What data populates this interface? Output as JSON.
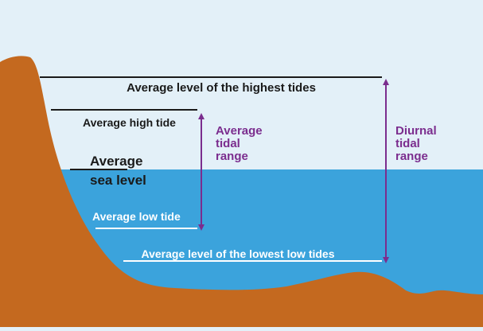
{
  "colors": {
    "sky": "#e3f0f8",
    "sea": "#3ba3dc",
    "land": "#c4691f",
    "dark_line": "#1a1a1a",
    "light_line": "#ffffff",
    "arrow": "#7b2d8e"
  },
  "labels": {
    "highest_tides": "Average level of the highest tides",
    "high_tide": "Average high tide",
    "sea_level_line1": "Average",
    "sea_level_line2": "sea level",
    "low_tide": "Average low tide",
    "lowest_low_tides": "Average level of the lowest low tides"
  },
  "ranges": {
    "average_tidal": [
      "Average",
      "tidal",
      "range"
    ],
    "diurnal_tidal": [
      "Diurnal",
      "tidal",
      "range"
    ]
  }
}
